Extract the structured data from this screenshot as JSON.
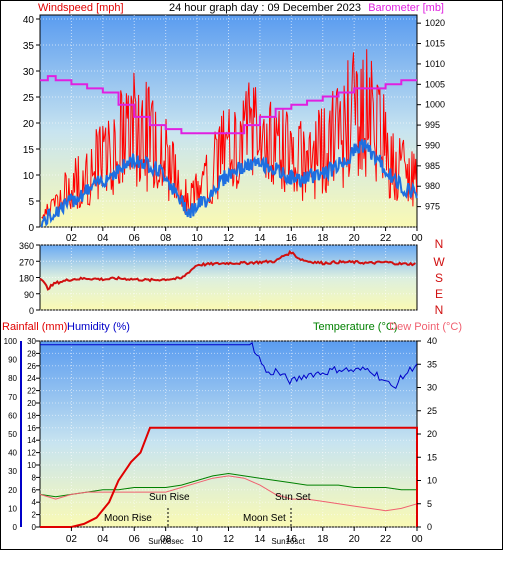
{
  "header": {
    "left_label": "Windspeed [mph]",
    "center_label": "24 hour graph day : 09 December 2023",
    "right_label": "Barometer [mb]"
  },
  "lower_header": {
    "rain_label": "Rainfall (mm)",
    "humidity_label": "Humidity (%)",
    "temp_label": "Temperature (°C)",
    "dew_label": "Dew Point (°C)"
  },
  "x_ticks": [
    "02",
    "04",
    "06",
    "08",
    "10",
    "12",
    "14",
    "16",
    "18",
    "20",
    "22",
    "00"
  ],
  "direction_letters": [
    "N",
    "W",
    "S",
    "E",
    "N"
  ],
  "annotations": {
    "moon_rise": "Moon Rise",
    "sun_rise": "Sun Rise",
    "moon_set": "Moon Set",
    "sun_set": "Sun Set",
    "sun_rise_time_label": "Sun08sec",
    "sun_set_time_label": "Sun16sct"
  },
  "colors": {
    "wind_gust": "#ff0000",
    "wind_avg": "#1e6fe0",
    "barometer": "#e020e0",
    "direction": "#d01010",
    "rain": "#e00000",
    "humidity": "#0000c8",
    "temperature": "#008000",
    "dewpoint": "#f06070",
    "sky_top": "#5a9cf0",
    "sky_bottom": "#fafab4"
  },
  "chart_data": [
    {
      "type": "line",
      "x_label_ticks": [
        "02",
        "04",
        "06",
        "08",
        "10",
        "12",
        "14",
        "16",
        "18",
        "20",
        "22",
        "00"
      ],
      "y_left": {
        "ticks": [
          0,
          5,
          10,
          15,
          20,
          25,
          30,
          35,
          40
        ],
        "ylim": [
          0,
          40
        ]
      },
      "y_right": {
        "ticks": [
          975,
          980,
          985,
          990,
          995,
          1000,
          1005,
          1010,
          1015,
          1020
        ],
        "ylim": [
          970,
          1022
        ]
      },
      "series": [
        {
          "name": "Windspeed [mph]",
          "axis": "left",
          "hours": [
            0.2,
            1,
            2,
            3,
            4,
            5,
            6,
            7,
            8,
            8.7,
            9.5,
            10.5,
            11.5,
            12.5,
            13.5,
            14.5,
            15.5,
            16.5,
            17.5,
            18.5,
            19.5,
            20.5,
            21.5,
            22.5,
            23.5
          ],
          "values": [
            3,
            5,
            9,
            11,
            15,
            18,
            21,
            19,
            16,
            10,
            6,
            9,
            15,
            18,
            20,
            19,
            16,
            14,
            15,
            18,
            22,
            25,
            21,
            14,
            11
          ]
        },
        {
          "name": "Windspeed avg",
          "axis": "left",
          "hours": [
            0.2,
            1,
            2,
            3,
            4,
            5,
            6,
            7,
            8,
            8.7,
            9.5,
            10.5,
            11.5,
            12.5,
            13.5,
            14.5,
            15.5,
            16.5,
            17.5,
            18.5,
            19.5,
            20.5,
            21.5,
            22.5,
            23.5
          ],
          "values": [
            1,
            3,
            5,
            7,
            9,
            11,
            13,
            12,
            10,
            6,
            3,
            5,
            9,
            11,
            12,
            12,
            10,
            9,
            10,
            11,
            13,
            16,
            13,
            9,
            7
          ]
        },
        {
          "name": "Barometer [mb]",
          "axis": "right",
          "hours": [
            0,
            0.5,
            1,
            2,
            3,
            4,
            5,
            6,
            7,
            8,
            9,
            10,
            11,
            12,
            13,
            14,
            15,
            16,
            17,
            18,
            19,
            20,
            21,
            22,
            23,
            24
          ],
          "values": [
            1006,
            1007,
            1006,
            1005,
            1004,
            1003,
            1000,
            997,
            995,
            994,
            993,
            993,
            993,
            993,
            995,
            997,
            999,
            1000,
            1001,
            1002,
            1003,
            1004,
            1004,
            1005,
            1006,
            1006
          ]
        }
      ]
    },
    {
      "type": "line",
      "y_left": {
        "ticks": [
          0,
          90,
          180,
          270,
          360
        ],
        "ylim": [
          0,
          360
        ]
      },
      "series": [
        {
          "name": "Wind direction",
          "hours": [
            0,
            0.5,
            1,
            2,
            3,
            4,
            5,
            6,
            7,
            8,
            9,
            10,
            11,
            12,
            13,
            14,
            15,
            15.5,
            16,
            16.5,
            17,
            18,
            19,
            20,
            21,
            22,
            23,
            24
          ],
          "values": [
            180,
            120,
            150,
            170,
            175,
            170,
            175,
            170,
            165,
            170,
            175,
            250,
            255,
            260,
            260,
            265,
            270,
            300,
            320,
            285,
            270,
            260,
            265,
            265,
            260,
            265,
            255,
            255
          ]
        }
      ]
    },
    {
      "type": "line",
      "y_rain": {
        "ticks": [
          0,
          2,
          4,
          6,
          8,
          10,
          12,
          14,
          16,
          18,
          20,
          22,
          24,
          26,
          28,
          30
        ],
        "ylim": [
          0,
          30
        ]
      },
      "y_humidity": {
        "ticks": [
          0,
          10,
          20,
          30,
          40,
          50,
          60,
          70,
          80,
          90,
          100
        ],
        "ylim": [
          0,
          100
        ]
      },
      "y_temp": {
        "ticks": [
          0,
          5,
          10,
          15,
          20,
          25,
          30,
          35,
          40
        ],
        "ylim": [
          0,
          40
        ]
      },
      "series": [
        {
          "name": "Rainfall (mm)",
          "axis": "rain",
          "hours": [
            0,
            2,
            2.8,
            3.6,
            4.4,
            5,
            5.8,
            6.4,
            7,
            7.8,
            24
          ],
          "values": [
            0,
            0,
            0.5,
            1.5,
            4,
            7.5,
            10.5,
            12,
            16,
            16,
            16
          ]
        },
        {
          "name": "Humidity (%)",
          "axis": "humidity",
          "hours": [
            0,
            2,
            4,
            6,
            8,
            10,
            12,
            13.5,
            14,
            14.5,
            15,
            16,
            17,
            18,
            19,
            20,
            21,
            22,
            22.5,
            23,
            24
          ],
          "values": [
            98,
            98,
            98,
            98,
            98,
            98,
            98,
            98,
            90,
            82,
            84,
            78,
            82,
            83,
            85,
            84,
            85,
            78,
            75,
            80,
            88
          ]
        },
        {
          "name": "Temperature (°C)",
          "axis": "temp",
          "hours": [
            0,
            1,
            2,
            3,
            4,
            5,
            6,
            7,
            8,
            9,
            10,
            11,
            12,
            13,
            14,
            15,
            16,
            17,
            18,
            19,
            20,
            21,
            22,
            23,
            24
          ],
          "values": [
            7,
            6.5,
            7,
            7.5,
            8,
            8,
            8.5,
            8.5,
            8.5,
            9,
            10,
            11,
            11.5,
            11,
            10.5,
            10,
            9.5,
            9,
            9,
            9,
            8.5,
            8.5,
            8.5,
            8,
            8
          ]
        },
        {
          "name": "Dew Point (°C)",
          "axis": "temp",
          "hours": [
            0,
            1,
            2,
            3,
            4,
            5,
            6,
            7,
            8,
            9,
            10,
            11,
            12,
            13,
            14,
            15,
            16,
            17,
            18,
            19,
            20,
            21,
            22,
            23,
            24
          ],
          "values": [
            7,
            6,
            7,
            7.5,
            7.5,
            7.5,
            7.5,
            7.5,
            7.5,
            8.5,
            9.5,
            10.5,
            11,
            10.5,
            9,
            7,
            6,
            6,
            5.5,
            5,
            4.5,
            4,
            3.5,
            4,
            5
          ]
        }
      ]
    }
  ]
}
